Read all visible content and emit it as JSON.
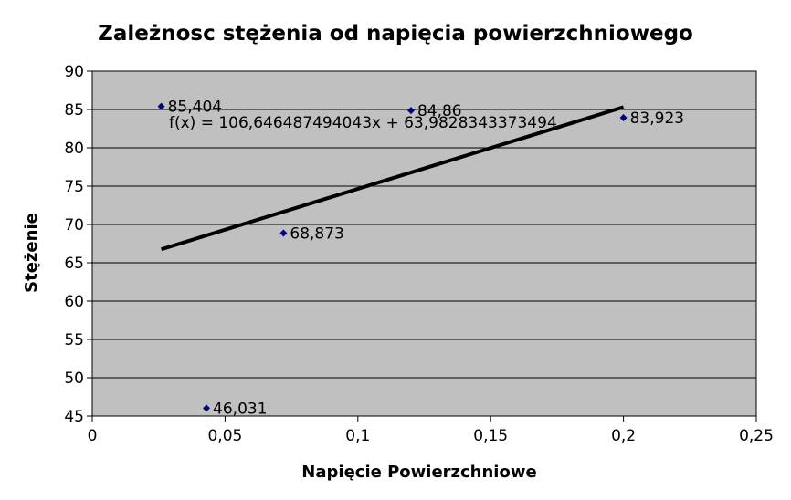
{
  "chart_data": {
    "type": "scatter",
    "title": "Zależnosc stężenia od napięcia powierzchniowego",
    "xlabel": "Napięcie Powierzchniowe",
    "ylabel": "Stężenie",
    "xlim": [
      0,
      0.25
    ],
    "ylim": [
      45,
      90
    ],
    "x_ticks": [
      0,
      0.05,
      0.1,
      0.15,
      0.2,
      0.25
    ],
    "x_tick_labels": [
      "0",
      "0,05",
      "0,1",
      "0,15",
      "0,2",
      "0,25"
    ],
    "y_ticks": [
      45,
      50,
      55,
      60,
      65,
      70,
      75,
      80,
      85,
      90
    ],
    "y_tick_labels": [
      "45",
      "50",
      "55",
      "60",
      "65",
      "70",
      "75",
      "80",
      "85",
      "90"
    ],
    "grid": "horizontal",
    "plot_background": "#c0c0c0",
    "marker_color": "#000080",
    "trend_color": "#000000",
    "points": [
      {
        "x": 0.026,
        "y": 85.404,
        "label": "85,404"
      },
      {
        "x": 0.043,
        "y": 46.031,
        "label": "46,031"
      },
      {
        "x": 0.072,
        "y": 68.873,
        "label": "68,873"
      },
      {
        "x": 0.12,
        "y": 84.86,
        "label": "84,86"
      },
      {
        "x": 0.2,
        "y": 83.923,
        "label": "83,923"
      }
    ],
    "trendline": {
      "type": "linear",
      "slope": 106.646487494043,
      "intercept": 63.9828343373494,
      "x_range": [
        0.026,
        0.2
      ],
      "equation_label": "f(x) = 106,646487494043x + 63,9828343373494"
    }
  }
}
